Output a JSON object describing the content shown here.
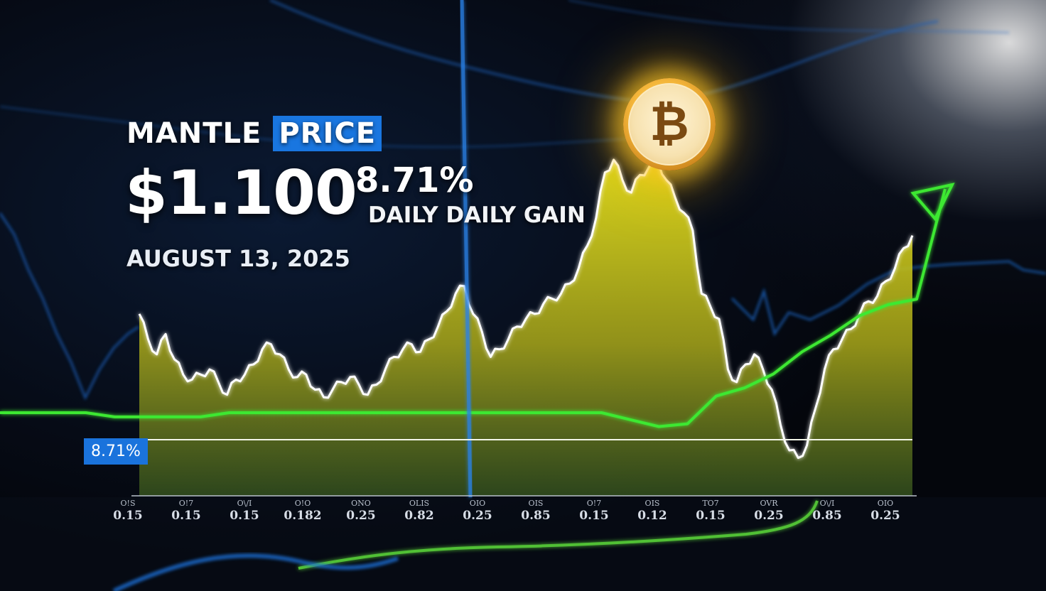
{
  "headline": {
    "left": "MANTLE",
    "accent": "PRICE"
  },
  "price": "$1.100",
  "date": "AUGUST 13, 2025",
  "change_pct": "8.71%",
  "change_label": "DAILY DAILY GAIN",
  "badge_label": "8.71%",
  "coin_icon": "bitcoin-coin-icon",
  "colors": {
    "area": "#c8c21a",
    "line": "#ffffff",
    "green": "#3ee832",
    "blue": "#1e6fd6",
    "badge": "#1a73dc"
  },
  "chart_data": {
    "type": "area",
    "x_tick_labels": [
      {
        "top": "O!S",
        "bottom": "0.15"
      },
      {
        "top": "O!7",
        "bottom": "0.15"
      },
      {
        "top": "O\\/I",
        "bottom": "0.15"
      },
      {
        "top": "O!O",
        "bottom": "0.182"
      },
      {
        "top": "ONO",
        "bottom": "0.25"
      },
      {
        "top": "OLIS",
        "bottom": "0.82"
      },
      {
        "top": "OIO",
        "bottom": "0.25"
      },
      {
        "top": "OIS",
        "bottom": "0.85"
      },
      {
        "top": "O!7",
        "bottom": "0.15"
      },
      {
        "top": "OIS",
        "bottom": "0.12"
      },
      {
        "top": "TO7",
        "bottom": "0.15"
      },
      {
        "top": "OVR",
        "bottom": "0.25"
      },
      {
        "top": "O\\/I",
        "bottom": "0.85"
      },
      {
        "top": "OIO",
        "bottom": "0.25"
      }
    ],
    "series": [
      {
        "values": [
          72,
          62,
          56,
          64,
          54,
          48,
          46,
          48,
          50,
          45,
          40,
          46,
          48,
          52,
          58,
          60,
          56,
          50,
          47,
          48,
          42,
          39,
          42,
          45,
          47,
          44,
          40,
          44,
          50,
          55,
          58,
          60,
          57,
          62,
          67,
          73,
          80,
          83,
          72,
          65,
          55,
          58,
          62,
          67,
          70,
          72,
          76,
          78,
          80,
          84,
          90,
          99,
          110,
          128,
          133,
          125,
          120,
          127,
          130,
          133,
          125,
          118,
          112,
          105,
          80,
          75,
          70,
          50,
          45,
          52,
          56,
          50,
          42,
          28,
          18,
          15,
          20,
          35,
          50,
          58,
          62,
          66,
          72,
          77,
          79,
          85,
          90,
          98,
          103
        ]
      }
    ],
    "reference_line": {
      "label": "8.71%"
    },
    "green_line": [
      60,
      60,
      60,
      60,
      57,
      57,
      57,
      57,
      60,
      60,
      60,
      60,
      60,
      60,
      60,
      60,
      60,
      60,
      60,
      60,
      60,
      60,
      55,
      50,
      52,
      72,
      78,
      88,
      104,
      116,
      130,
      138,
      142
    ]
  }
}
